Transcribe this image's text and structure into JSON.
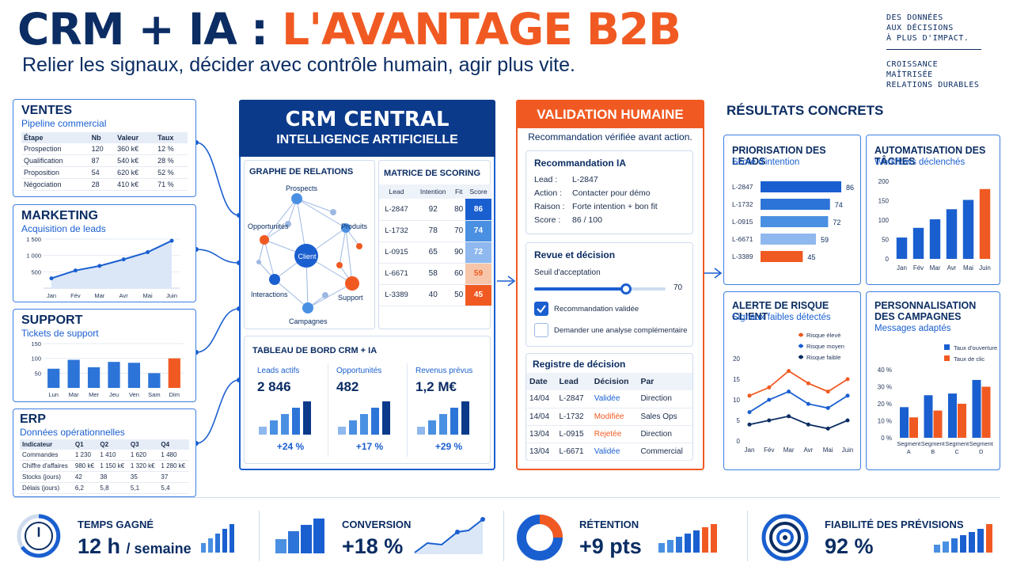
{
  "header": {
    "title_part1": "CRM + IA : ",
    "title_part2": "L'AVANTAGE B2B",
    "subtitle": "Relier les signaux, décider avec contrôle humain, agir plus vite.",
    "tagline1": [
      "DES DONNÉES",
      "AUX DÉCISIONS",
      "À PLUS D'IMPACT."
    ],
    "tagline2": [
      "CROISSANCE",
      "MAÎTRISÉE",
      "RELATIONS DURABLES"
    ]
  },
  "colors": {
    "navy": "#0b2d63",
    "blue": "#1a5fd0",
    "orange": "#f05a22",
    "lightblue": "#4a90e2"
  },
  "ventes": {
    "title": "VENTES",
    "subtitle": "Pipeline commercial",
    "headers": [
      "Étape",
      "Nb",
      "Valeur",
      "Taux"
    ],
    "rows": [
      [
        "Prospection",
        "120",
        "360 k€",
        "12 %"
      ],
      [
        "Qualification",
        "87",
        "540 k€",
        "28 %"
      ],
      [
        "Proposition",
        "54",
        "620 k€",
        "52 %"
      ],
      [
        "Négociation",
        "28",
        "410 k€",
        "71 %"
      ]
    ]
  },
  "marketing": {
    "title": "MARKETING",
    "subtitle": "Acquisition de leads",
    "yticks": [
      "1 500",
      "1 000",
      "500"
    ],
    "months": [
      "Jan",
      "Fév",
      "Mar",
      "Avr",
      "Mai",
      "Juin"
    ],
    "values": [
      300,
      540,
      680,
      880,
      1100,
      1450
    ]
  },
  "support": {
    "title": "SUPPORT",
    "subtitle": "Tickets de support",
    "yticks": [
      "150",
      "100",
      "50"
    ],
    "days": [
      "Lun",
      "Mar",
      "Mer",
      "Jeu",
      "Ven",
      "Sam",
      "Dim"
    ],
    "values": [
      65,
      95,
      70,
      88,
      85,
      50,
      100
    ]
  },
  "erp": {
    "title": "ERP",
    "subtitle": "Données opérationnelles",
    "headers": [
      "Indicateur",
      "Q1",
      "Q2",
      "Q3",
      "Q4"
    ],
    "rows": [
      [
        "Commandes",
        "1 230",
        "1 410",
        "1 620",
        "1 480"
      ],
      [
        "Chiffre d'affaires",
        "980 k€",
        "1 150 k€",
        "1 320 k€",
        "1 280 k€"
      ],
      [
        "Stocks (jours)",
        "42",
        "38",
        "35",
        "37"
      ],
      [
        "Délais (jours)",
        "6,2",
        "5,8",
        "5,1",
        "5,4"
      ]
    ]
  },
  "crm": {
    "title": "CRM CENTRAL",
    "subtitle": "INTELLIGENCE ARTIFICIELLE",
    "graph_title": "GRAPHE DE RELATIONS",
    "graph_nodes": {
      "center": "Client",
      "prospects": "Prospects",
      "opportunites": "Opportunités",
      "produits": "Produits",
      "interactions": "Interactions",
      "support": "Support",
      "campagnes": "Campagnes"
    },
    "matrix_title": "MATRICE DE SCORING",
    "matrix_headers": [
      "Lead",
      "Intention",
      "Fit",
      "Score"
    ],
    "matrix_rows": [
      [
        "L-2847",
        "92",
        "80",
        "86"
      ],
      [
        "L-1732",
        "78",
        "70",
        "74"
      ],
      [
        "L-0915",
        "65",
        "90",
        "72"
      ],
      [
        "L-6671",
        "58",
        "60",
        "59"
      ],
      [
        "L-3389",
        "40",
        "50",
        "45"
      ]
    ],
    "dashboard_title": "TABLEAU DE BORD CRM + IA",
    "kpis": [
      {
        "label": "Leads actifs",
        "value": "2 846",
        "change": "+24 %"
      },
      {
        "label": "Opportunités",
        "value": "482",
        "change": "+17 %"
      },
      {
        "label": "Revenus prévus",
        "value": "1,2 M€",
        "change": "+29 %"
      }
    ]
  },
  "validation": {
    "title": "VALIDATION HUMAINE",
    "subtitle": "Recommandation vérifiée avant action.",
    "rec_title": "Recommandation IA",
    "rec_rows": [
      {
        "k": "Lead :",
        "v": "L-2847"
      },
      {
        "k": "Action :",
        "v": "Contacter pour démo"
      },
      {
        "k": "Raison :",
        "v": "Forte intention + bon fit"
      },
      {
        "k": "Score :",
        "v": "86 / 100"
      }
    ],
    "review_title": "Revue et décision",
    "threshold_label": "Seuil d'acceptation",
    "threshold_value": "70",
    "threshold_fraction": 0.7,
    "check1": "Recommandation validée",
    "check2": "Demander une analyse complémentaire",
    "register_title": "Registre de décision",
    "register_headers": [
      "Date",
      "Lead",
      "Décision",
      "Par"
    ],
    "register_rows": [
      [
        "14/04",
        "L-2847",
        "Validée",
        "Direction"
      ],
      [
        "14/04",
        "L-1732",
        "Modifiée",
        "Sales Ops"
      ],
      [
        "13/04",
        "L-0915",
        "Rejetée",
        "Direction"
      ],
      [
        "13/04",
        "L-6671",
        "Validée",
        "Commercial"
      ]
    ]
  },
  "results": {
    "title": "RÉSULTATS CONCRETS",
    "priorisation": {
      "title": "PRIORISATION DES LEADS",
      "subtitle": "Score d'intention",
      "leads": [
        "L-2847",
        "L-1732",
        "L-0915",
        "L-6671",
        "L-3389"
      ],
      "values": [
        86,
        74,
        72,
        59,
        45
      ]
    },
    "automatisation": {
      "title": "AUTOMATISATION DES TÂCHES",
      "subtitle": "Workflows déclenchés",
      "yticks": [
        "200",
        "150",
        "100",
        "50",
        "0"
      ],
      "months": [
        "Jan",
        "Fév",
        "Mar",
        "Avr",
        "Mai",
        "Juin"
      ],
      "values": [
        55,
        80,
        102,
        128,
        152,
        180
      ]
    },
    "risque": {
      "title": "ALERTE DE RISQUE CLIENT",
      "subtitle": "Signaux faibles détectés",
      "legend": [
        "Risque élevé",
        "Risque moyen",
        "Risque faible"
      ],
      "yticks": [
        "20",
        "15",
        "10",
        "5",
        "0"
      ],
      "months": [
        "Jan",
        "Fév",
        "Mar",
        "Avr",
        "Mai",
        "Juin"
      ],
      "series": [
        {
          "name": "Risque élevé",
          "values": [
            11,
            13,
            17,
            14,
            12,
            15
          ]
        },
        {
          "name": "Risque moyen",
          "values": [
            7,
            10,
            12,
            9,
            8,
            11
          ]
        },
        {
          "name": "Risque faible",
          "values": [
            4,
            5,
            6,
            4,
            3,
            5
          ]
        }
      ]
    },
    "personnalisation": {
      "title": "PERSONNALISATION DES CAMPAGNES",
      "subtitle": "Messages adaptés",
      "legend": [
        "Taux d'ouverture",
        "Taux de clic"
      ],
      "yticks": [
        "40 %",
        "30 %",
        "20 %",
        "10 %",
        "0 %"
      ],
      "segments": [
        "Segment A",
        "Segment B",
        "Segment C",
        "Segment D"
      ],
      "series": [
        {
          "name": "Taux d'ouverture",
          "values": [
            18,
            25,
            26,
            34
          ]
        },
        {
          "name": "Taux de clic",
          "values": [
            12,
            16,
            20,
            30
          ]
        }
      ]
    }
  },
  "bottom": [
    {
      "label": "TEMPS GAGNÉ",
      "value": "12 h",
      "unit": "/ semaine"
    },
    {
      "label": "CONVERSION",
      "value": "+18 %"
    },
    {
      "label": "RÉTENTION",
      "value": "+9 pts"
    },
    {
      "label": "FIABILITÉ DES PRÉVISIONS",
      "value": "92 %"
    }
  ]
}
